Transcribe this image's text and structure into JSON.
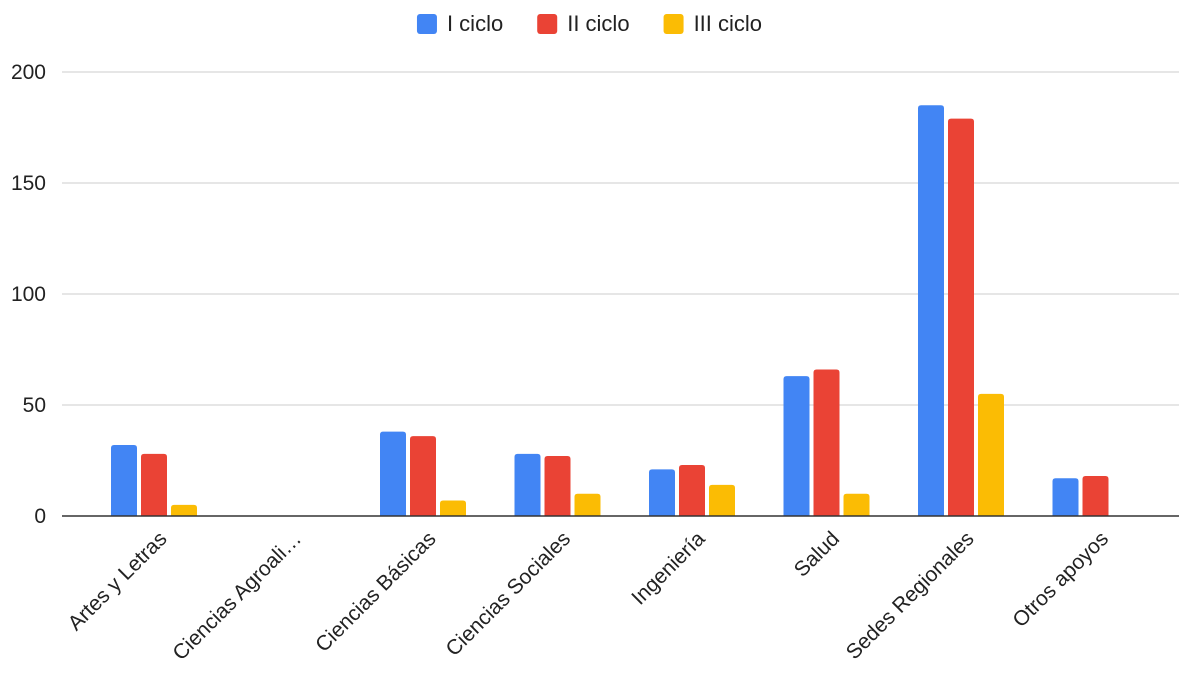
{
  "chart_data": {
    "type": "bar",
    "categories": [
      "Artes y Letras",
      "Ciencias Agroali…",
      "Ciencias Básicas",
      "Ciencias Sociales",
      "Ingeniería",
      "Salud",
      "Sedes Regionales",
      "Otros apoyos"
    ],
    "series": [
      {
        "name": "I ciclo",
        "color": "#4285f4",
        "values": [
          32,
          0,
          38,
          28,
          21,
          63,
          185,
          17
        ]
      },
      {
        "name": "II ciclo",
        "color": "#ea4335",
        "values": [
          28,
          0,
          36,
          27,
          23,
          66,
          179,
          18
        ]
      },
      {
        "name": "III ciclo",
        "color": "#fbbc04",
        "values": [
          5,
          0,
          7,
          10,
          14,
          10,
          55,
          0
        ]
      }
    ],
    "title": "",
    "xlabel": "",
    "ylabel": "",
    "ylim": [
      0,
      200
    ],
    "yticks": [
      0,
      50,
      100,
      150,
      200
    ],
    "grid": true,
    "legend_position": "top"
  }
}
